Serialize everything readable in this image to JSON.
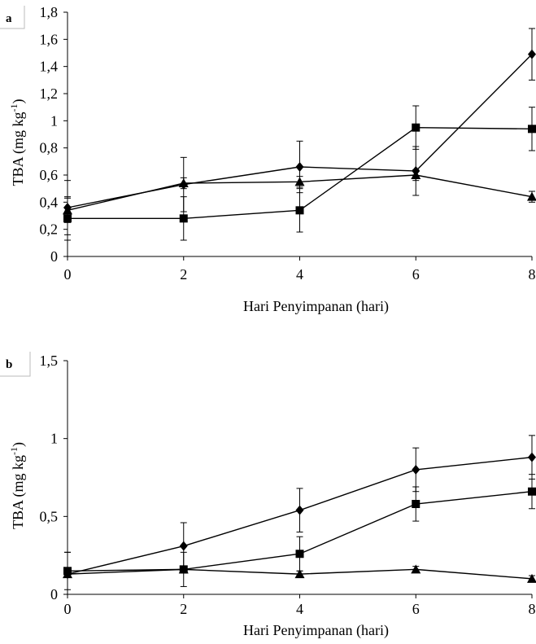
{
  "chart_data": [
    {
      "panel": "a",
      "type": "line",
      "xlabel": "Hari Penyimpanan (hari)",
      "ylabel": "TBA (mg kg-1)",
      "x": [
        0,
        2,
        4,
        6,
        8
      ],
      "xticks": [
        "0",
        "2",
        "4",
        "6",
        "8"
      ],
      "yticks": [
        "0",
        "0,2",
        "0,4",
        "0,6",
        "0,8",
        "1",
        "1,2",
        "1,4",
        "1,6",
        "1,8"
      ],
      "ylim": [
        0,
        1.8
      ],
      "grid": false,
      "series": [
        {
          "marker": "diamond",
          "values": [
            0.36,
            0.53,
            0.66,
            0.63,
            1.49
          ],
          "errors": [
            0.2,
            0.2,
            0.19,
            0.18,
            0.19
          ]
        },
        {
          "marker": "square",
          "values": [
            0.28,
            0.28,
            0.34,
            0.95,
            0.94
          ],
          "errors": [
            0.16,
            0.16,
            0.16,
            0.16,
            0.16
          ]
        },
        {
          "marker": "triangle",
          "values": [
            0.34,
            0.54,
            0.55,
            0.6,
            0.44
          ],
          "errors": [
            0.09,
            0.04,
            0.04,
            0.04,
            0.04
          ]
        }
      ]
    },
    {
      "panel": "b",
      "type": "line",
      "xlabel": "Hari Penyimpanan (hari)",
      "ylabel": "TBA (mg kg-1)",
      "x": [
        0,
        2,
        4,
        6,
        8
      ],
      "xticks": [
        "0",
        "2",
        "4",
        "6",
        "8"
      ],
      "yticks": [
        "0",
        "0,5",
        "1",
        "1,5"
      ],
      "ylim": [
        0,
        1.5
      ],
      "grid": false,
      "series": [
        {
          "marker": "diamond",
          "values": [
            0.13,
            0.31,
            0.54,
            0.8,
            0.88
          ],
          "errors": [
            0.14,
            0.15,
            0.14,
            0.14,
            0.14
          ]
        },
        {
          "marker": "square",
          "values": [
            0.15,
            0.16,
            0.26,
            0.58,
            0.66
          ],
          "errors": [
            0.12,
            0.11,
            0.11,
            0.11,
            0.11
          ]
        },
        {
          "marker": "triangle",
          "values": [
            0.13,
            0.16,
            0.13,
            0.16,
            0.1
          ],
          "errors": [
            0.02,
            0.02,
            0.02,
            0.02,
            0.02
          ]
        }
      ]
    }
  ]
}
